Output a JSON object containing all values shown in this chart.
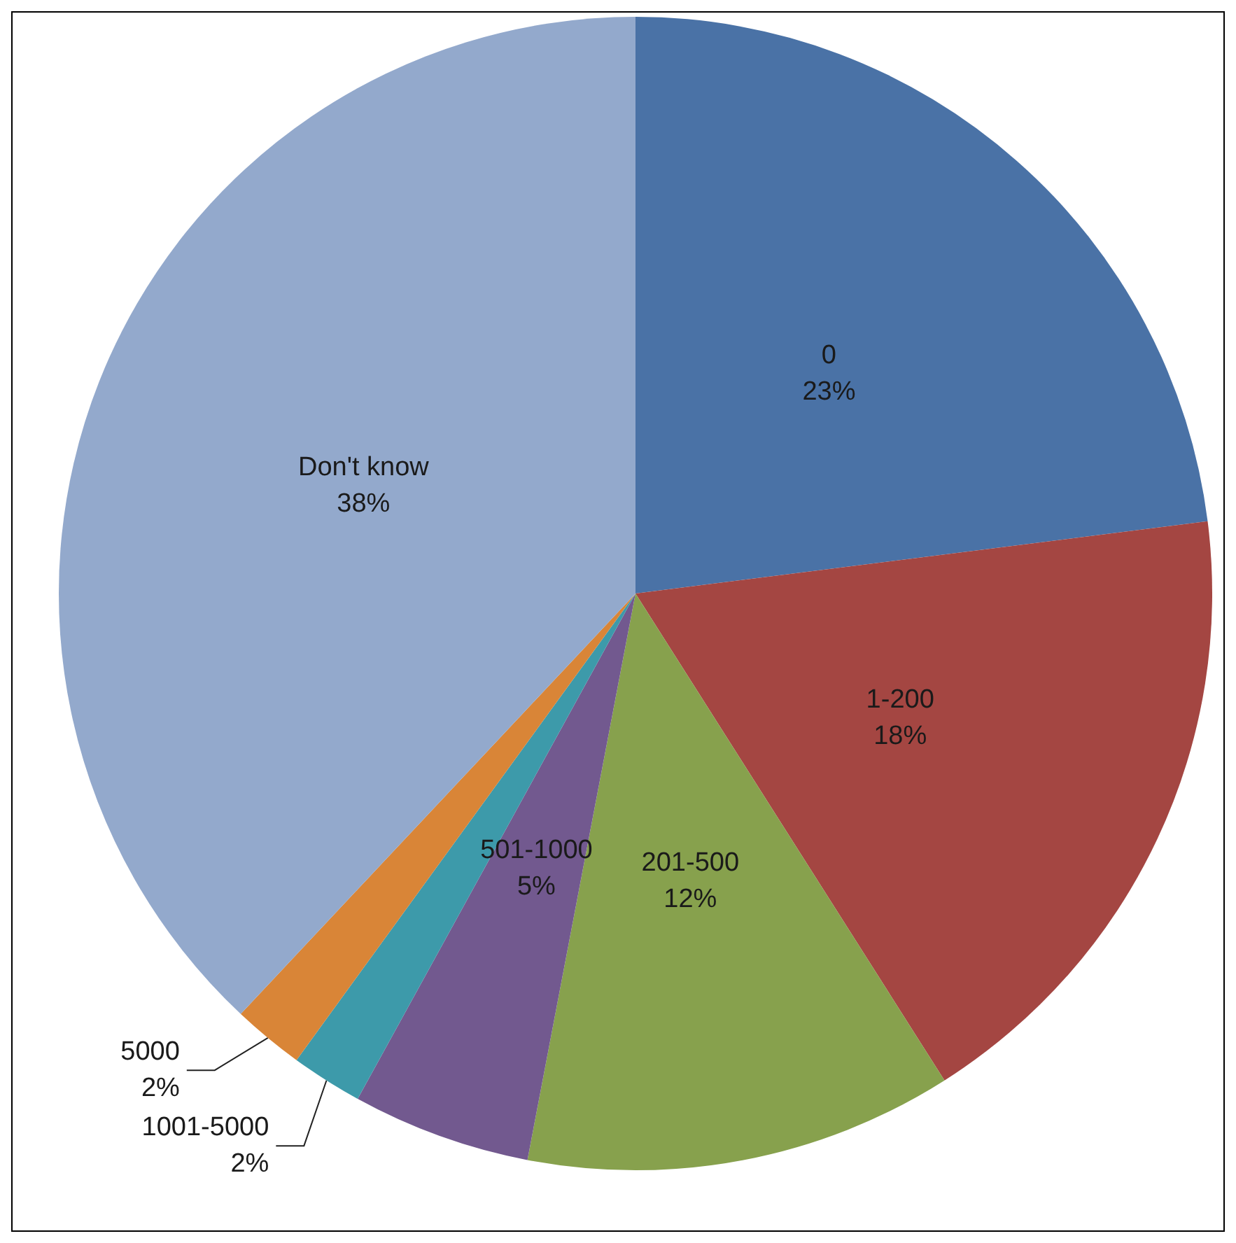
{
  "chart_data": {
    "type": "pie",
    "categories": [
      "0",
      "1-200",
      "201-500",
      "501-1000",
      "1001-5000",
      "5000",
      "Don't know"
    ],
    "values": [
      23,
      18,
      12,
      5,
      2,
      2,
      38
    ],
    "value_labels": [
      "23%",
      "18%",
      "12%",
      "5%",
      "2%",
      "2%",
      "38%"
    ],
    "colors": [
      "#4a72a6",
      "#a44642",
      "#87a14d",
      "#72598f",
      "#3d9aaa",
      "#d98537",
      "#93a9cc"
    ],
    "legend": false
  }
}
